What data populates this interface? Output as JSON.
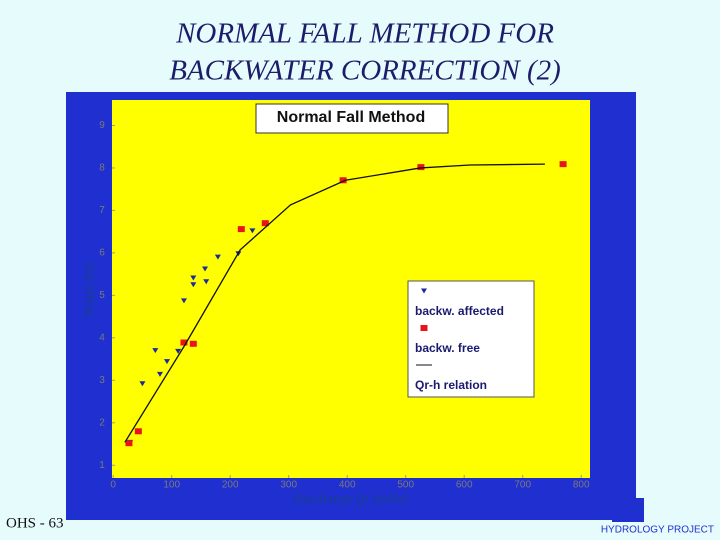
{
  "title": [
    "NORMAL FALL METHOD FOR",
    "BACKWATER CORRECTION (2)"
  ],
  "footer": "OHS - 63",
  "logo": "HYDROLOGY PROJECT",
  "chart_data": {
    "type": "scatter",
    "title": "Normal Fall Method",
    "x_label": "Discharge Qr (m3/s)",
    "y_label": "Stage (m)",
    "xlim": [
      -2,
      815
    ],
    "ylim": [
      0.7,
      9.6
    ],
    "xticks": [
      0,
      100,
      200,
      300,
      400,
      500,
      600,
      700,
      800
    ],
    "yticks": [
      1,
      2,
      3,
      4,
      5,
      6,
      7,
      8,
      9
    ],
    "series": [
      {
        "name": "backw. affected",
        "marker": "triangle",
        "color": "#1a2a9a",
        "x": [
          29,
          50,
          72,
          80,
          92,
          111,
          121,
          137,
          137,
          157,
          159,
          179,
          214,
          238
        ],
        "values": [
          1.54,
          2.92,
          3.7,
          3.14,
          3.44,
          3.68,
          4.87,
          5.25,
          5.41,
          5.62,
          5.32,
          5.9,
          5.98,
          6.52
        ]
      },
      {
        "name": "backw. free",
        "marker": "square",
        "color": "#e8141c",
        "x": [
          27,
          43,
          121,
          137,
          219,
          260,
          393,
          526,
          769
        ],
        "values": [
          1.52,
          1.8,
          3.89,
          3.86,
          6.56,
          6.7,
          7.71,
          8.02,
          8.09
        ]
      },
      {
        "name": "Qr-h relation",
        "marker": "line",
        "color": "#111111",
        "x": [
          20,
          123,
          217,
          303,
          397,
          525,
          610,
          738
        ],
        "values": [
          1.54,
          3.84,
          6.07,
          7.13,
          7.71,
          8.0,
          8.07,
          8.09
        ]
      }
    ]
  }
}
